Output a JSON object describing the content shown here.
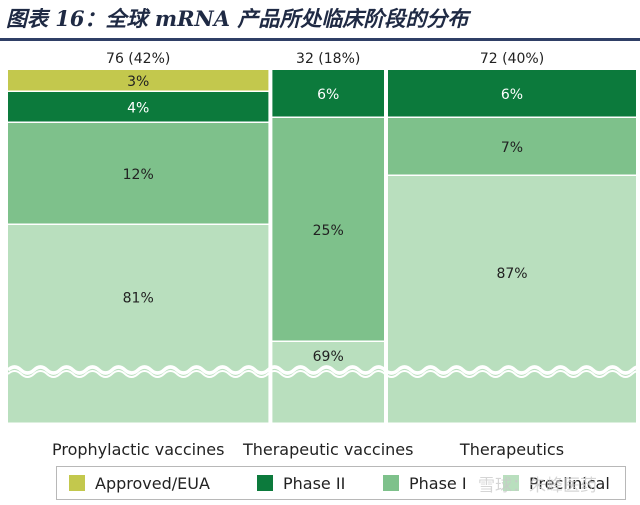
{
  "title": "图表 16：全球 mRNA 产品所处临床阶段的分布",
  "watermark": "雪球：朱峰医药",
  "colors": {
    "approved": "#c3c84d",
    "phase2": "#0c7a3c",
    "phase1": "#7ec18b",
    "preclinical": "#b9dfbe",
    "title_rule": "#2f3f66"
  },
  "chart_data": {
    "type": "mekko",
    "title": "",
    "stages": [
      "Approved/EUA",
      "Phase II",
      "Phase I",
      "Preclinical"
    ],
    "categories": [
      {
        "name": "Prophylactic vaccines",
        "count_label": "76 (42%)",
        "count": 76,
        "share_pct": 42,
        "segments": [
          {
            "stage": "Approved/EUA",
            "pct": 3,
            "label": "3%"
          },
          {
            "stage": "Phase II",
            "pct": 4,
            "label": "4%"
          },
          {
            "stage": "Phase I",
            "pct": 12,
            "label": "12%"
          },
          {
            "stage": "Preclinical",
            "pct": 81,
            "label": "81%"
          }
        ]
      },
      {
        "name": "Therapeutic vaccines",
        "count_label": "32 (18%)",
        "count": 32,
        "share_pct": 18,
        "segments": [
          {
            "stage": "Approved/EUA",
            "pct": 0,
            "label": ""
          },
          {
            "stage": "Phase II",
            "pct": 6,
            "label": "6%"
          },
          {
            "stage": "Phase I",
            "pct": 25,
            "label": "25%"
          },
          {
            "stage": "Preclinical",
            "pct": 69,
            "label": "69%"
          }
        ]
      },
      {
        "name": "Therapeutics",
        "count_label": "72 (40%)",
        "count": 72,
        "share_pct": 40,
        "segments": [
          {
            "stage": "Approved/EUA",
            "pct": 0,
            "label": ""
          },
          {
            "stage": "Phase II",
            "pct": 6,
            "label": "6%"
          },
          {
            "stage": "Phase I",
            "pct": 7,
            "label": "7%"
          },
          {
            "stage": "Preclinical",
            "pct": 87,
            "label": "87%"
          }
        ]
      }
    ],
    "axis_break": true,
    "legend": {
      "placement": "bottom",
      "entries": [
        "Approved/EUA",
        "Phase II",
        "Phase I",
        "Preclinical"
      ]
    }
  }
}
